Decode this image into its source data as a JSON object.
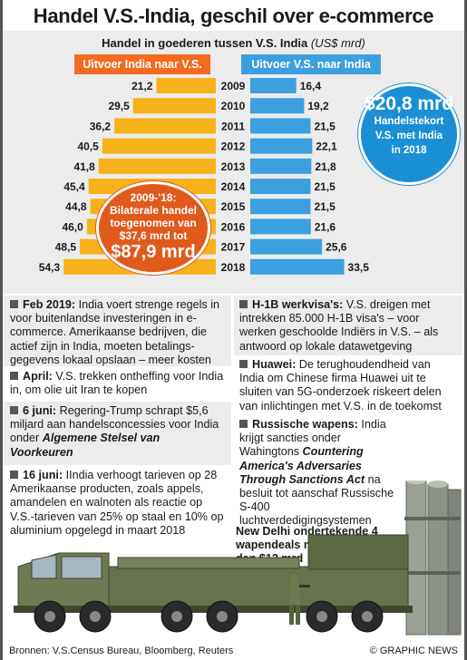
{
  "title": "Handel V.S.-India, geschil over e-commerce",
  "chart_data": {
    "type": "bar",
    "title": "Handel in goederen tussen V.S. India",
    "unit": "(US$ mrd)",
    "categories": [
      "2009",
      "2010",
      "2011",
      "2012",
      "2013",
      "2014",
      "2015",
      "2016",
      "2017",
      "2018"
    ],
    "series": [
      {
        "name": "Uitvoer India naar V.S.",
        "values": [
          21.2,
          29.5,
          36.2,
          40.5,
          41.8,
          45.4,
          44.8,
          46.0,
          48.5,
          54.3
        ],
        "labels": [
          "21,2",
          "29,5",
          "36,2",
          "40,5",
          "41,8",
          "45,4",
          "44,8",
          "46,0",
          "48,5",
          "54,3"
        ],
        "color": "#f7b21b"
      },
      {
        "name": "Uitvoer V.S. naar India",
        "values": [
          16.4,
          19.2,
          21.5,
          22.1,
          21.8,
          21.5,
          21.5,
          21.6,
          25.6,
          33.5
        ],
        "labels": [
          "16,4",
          "19,2",
          "21,5",
          "22,1",
          "21,8",
          "21,5",
          "21,5",
          "21,6",
          "25,6",
          "33,5"
        ],
        "color": "#3ca0df"
      }
    ],
    "xlim": [
      0,
      55
    ]
  },
  "deficit": {
    "value": "$20,8 mrd",
    "line1": "Handelstekort",
    "line2": "V.S. met India",
    "line3": "in 2018"
  },
  "bubble": {
    "line1": "2009-'18:",
    "line2": "Bilaterale handel",
    "line3": "toegenomen van",
    "line4": "$37,6 mrd tot",
    "value": "$87,9 mrd"
  },
  "news_left": [
    {
      "head": "Feb 2019:",
      "text": " India voert strenge regels in voor buitenlandse investeringen in e-commerce. Amerikaanse bedrijven, die actief zijn in India, moeten betalings-gegevens lokaal opslaan – meer kosten"
    },
    {
      "head": "April:",
      "text": " V.S. trekken ontheffing voor India in, om olie uit Iran te kopen"
    },
    {
      "head": "6 juni:",
      "text": " Regering-Trump schrapt $5,6 miljard aan handelsconcessies voor India onder ",
      "italic": "Algemene Stelsel van Voorkeuren"
    },
    {
      "head": "16 juni:",
      "text": " IIndia verhoogt tarieven op 28 Amerikaanse producten, zoals appels, amandelen en walnoten als reactie op V.S.-tarieven van 25% op staal en 10% op aluminium opgelegd in maart 2018"
    }
  ],
  "news_right": [
    {
      "head": "H-1B werkvisa's:",
      "text": " V.S. dreigen met intrekken 85.000 H-1B visa's – voor werken geschoolde Indiërs in V.S. – als antwoord op lokale datawetgeving"
    },
    {
      "head": "Huawei:",
      "text": " De terughoudendheid van India om Chinese firma Huawei uit te sluiten van 5G-onderzoek riskeert delen van inlichtingen met V.S. in de toekomst"
    },
    {
      "head": "Russische wapens:",
      "text": " India krijgt sancties onder Wahingtons ",
      "italic": "Countering America's Adversaries Through Sanctions Act",
      "tail": " na besluit tot aanschaf Russische S-400 luchtverdedigingsystemen"
    }
  ],
  "new_delhi": "New Delhi ondertekende 4 wapendeals met Moskou t/w.v. meer dan $12 mrd",
  "footer": {
    "sources": "Bronnen: V.S.Census Bureau, Bloomberg, Reuters",
    "brand": "© GRAPHIC NEWS"
  }
}
